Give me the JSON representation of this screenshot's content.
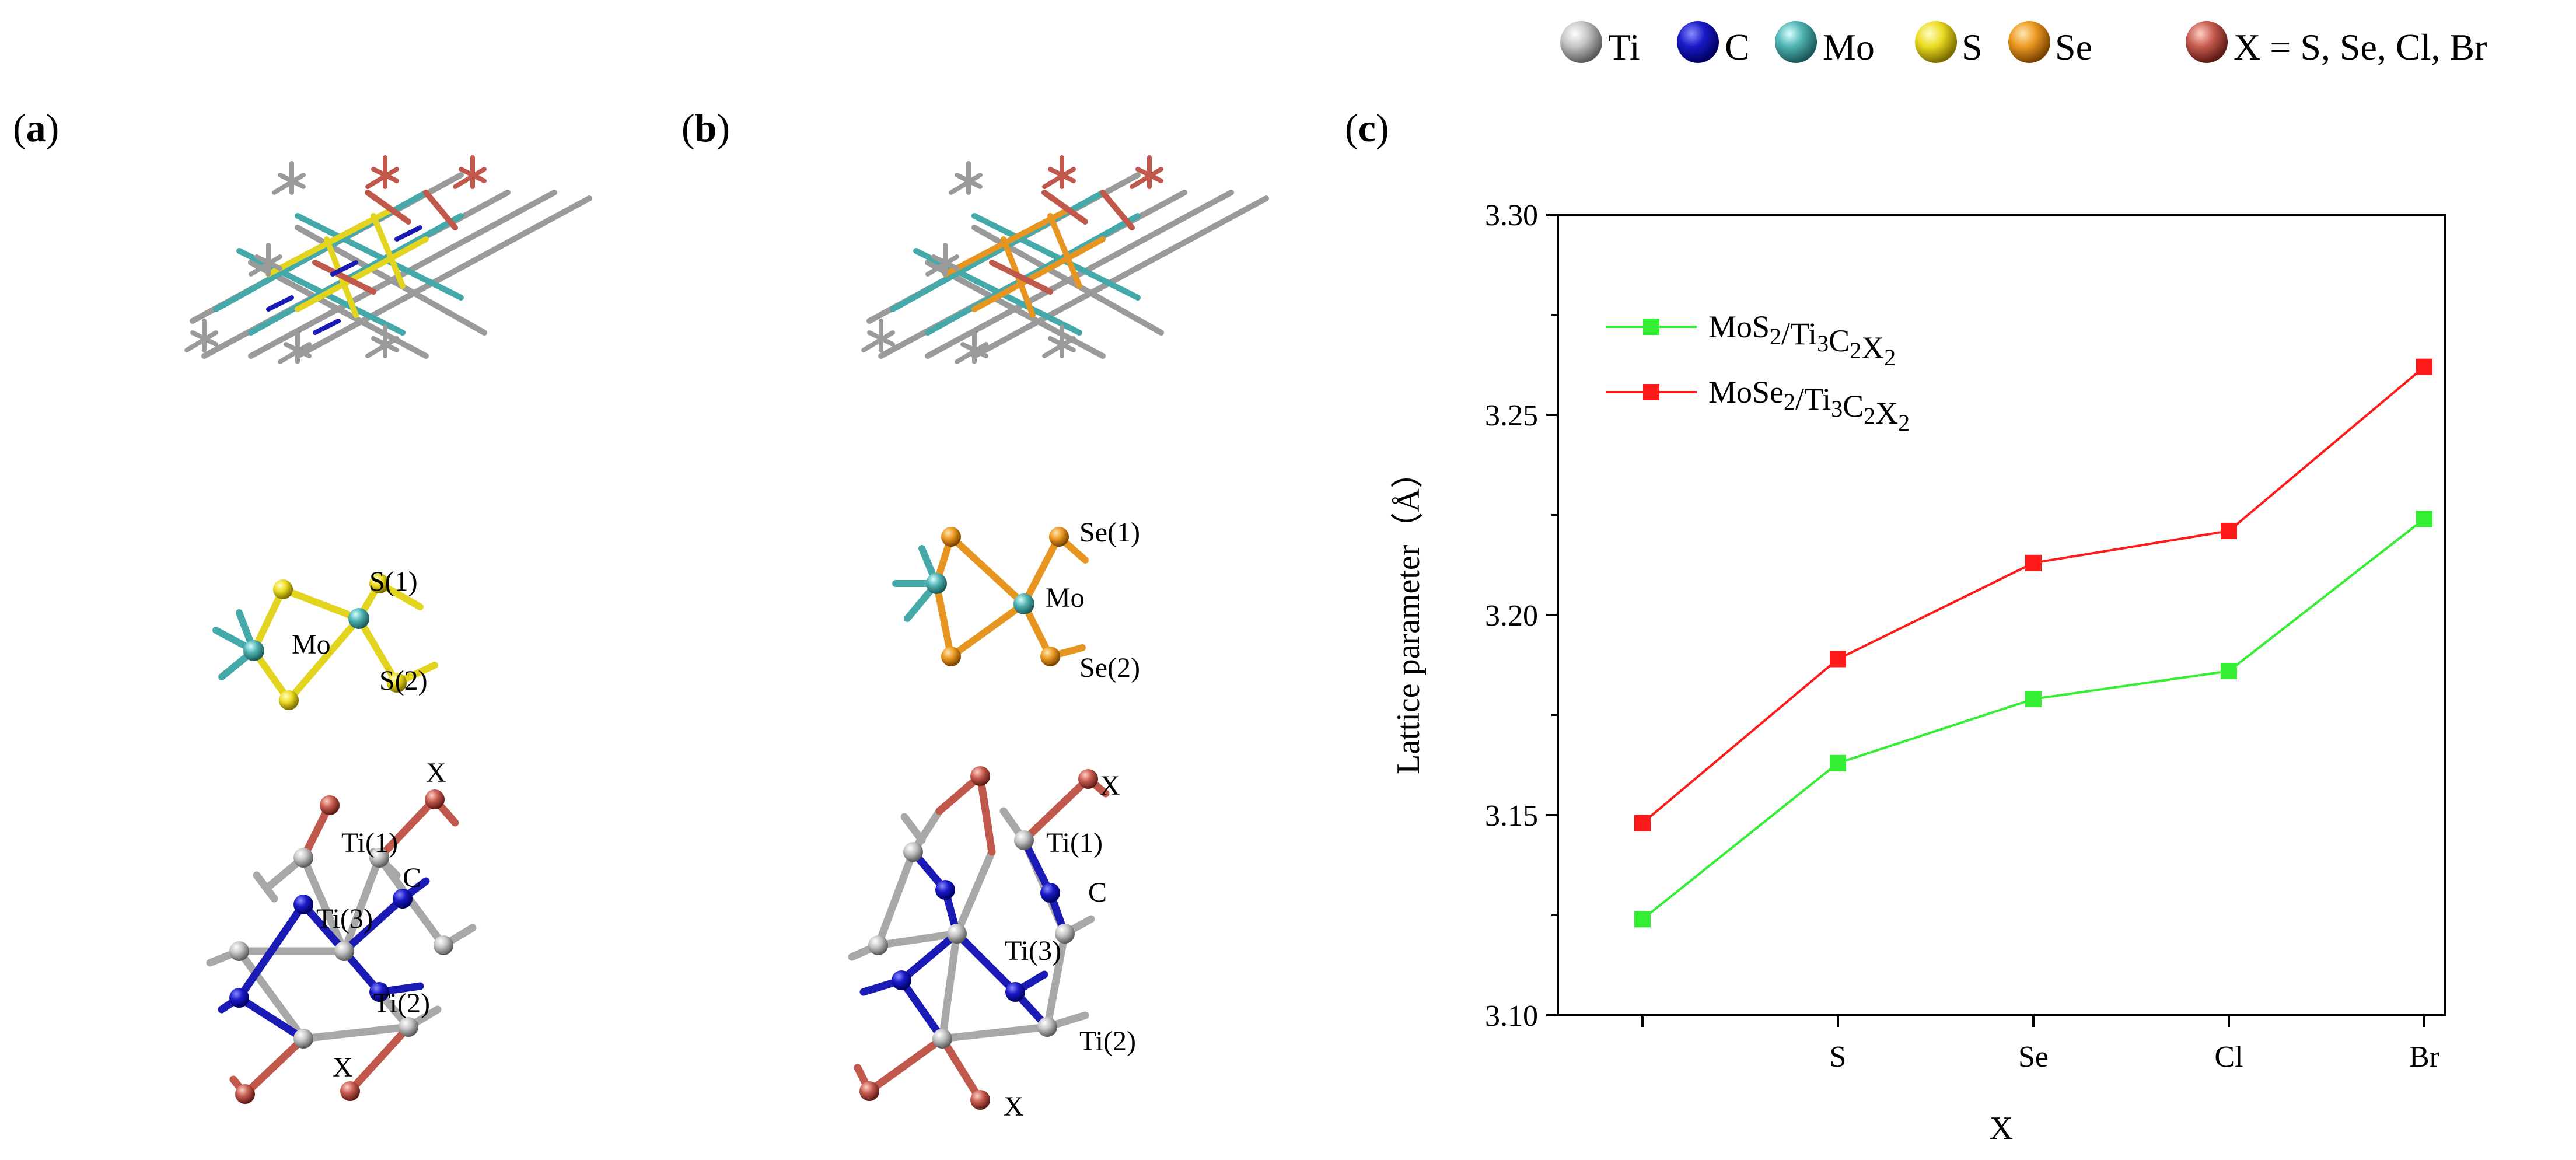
{
  "legend": {
    "items": [
      {
        "symbol": "Ti",
        "color": "#b4b4b4"
      },
      {
        "symbol": "C",
        "color": "#1a1ab4"
      },
      {
        "symbol": "Mo",
        "color": "#45a9a9"
      },
      {
        "symbol": "S",
        "color": "#e3d41f"
      },
      {
        "symbol": "Se",
        "color": "#e69520"
      },
      {
        "symbol": "X = S, Se, Cl, Br",
        "color": "#c0584c"
      }
    ]
  },
  "panels": {
    "a": {
      "label_open": "(",
      "label_letter": "a",
      "label_close": ")",
      "chalcogen_color": "#e3d41f",
      "atoms_top": [
        {
          "text": "S(1)"
        },
        {
          "text": "Mo"
        },
        {
          "text": "S(2)"
        }
      ],
      "atoms_bottom": [
        {
          "text": "X"
        },
        {
          "text": "Ti(1)"
        },
        {
          "text": "C"
        },
        {
          "text": "Ti(3)"
        },
        {
          "text": "Ti(2)"
        },
        {
          "text": "X"
        }
      ]
    },
    "b": {
      "label_open": "(",
      "label_letter": "b",
      "label_close": ")",
      "chalcogen_color": "#e69520",
      "atoms_top": [
        {
          "text": "Se(1)"
        },
        {
          "text": "Mo"
        },
        {
          "text": "Se(2)"
        }
      ],
      "atoms_bottom": [
        {
          "text": "X"
        },
        {
          "text": "Ti(1)"
        },
        {
          "text": "C"
        },
        {
          "text": "Ti(3)"
        },
        {
          "text": "Ti(2)"
        },
        {
          "text": "X"
        }
      ]
    },
    "c": {
      "label_open": "(",
      "label_letter": "c",
      "label_close": ")"
    }
  },
  "chart_data": {
    "type": "line",
    "title": "",
    "xlabel": "X",
    "ylabel": "Lattice parameter（Å）",
    "categories": [
      "",
      "S",
      "Se",
      "Cl",
      "Br"
    ],
    "ylim": [
      3.1,
      3.3
    ],
    "yticks": [
      3.1,
      3.15,
      3.2,
      3.25,
      3.3
    ],
    "ytick_labels": [
      "3.10",
      "3.15",
      "3.20",
      "3.25",
      "3.30"
    ],
    "legend_position": "top-left",
    "grid": false,
    "series": [
      {
        "name": "MoS2/Ti3C2X2",
        "legend_parts": [
          {
            "t": "MoS",
            "sub": false
          },
          {
            "t": "2",
            "sub": true
          },
          {
            "t": "/Ti",
            "sub": false
          },
          {
            "t": "3",
            "sub": true
          },
          {
            "t": "C",
            "sub": false
          },
          {
            "t": "2",
            "sub": true
          },
          {
            "t": "X",
            "sub": false
          },
          {
            "t": "2",
            "sub": true
          }
        ],
        "color": "#33ee33",
        "values": [
          3.124,
          3.163,
          3.179,
          3.186,
          3.224
        ]
      },
      {
        "name": "MoSe2/Ti3C2X2",
        "legend_parts": [
          {
            "t": "MoSe",
            "sub": false
          },
          {
            "t": "2",
            "sub": true
          },
          {
            "t": "/Ti",
            "sub": false
          },
          {
            "t": "3",
            "sub": true
          },
          {
            "t": "C",
            "sub": false
          },
          {
            "t": "2",
            "sub": true
          },
          {
            "t": "X",
            "sub": false
          },
          {
            "t": "2",
            "sub": true
          }
        ],
        "color": "#ff1a1a",
        "values": [
          3.148,
          3.189,
          3.213,
          3.221,
          3.262
        ]
      }
    ]
  }
}
